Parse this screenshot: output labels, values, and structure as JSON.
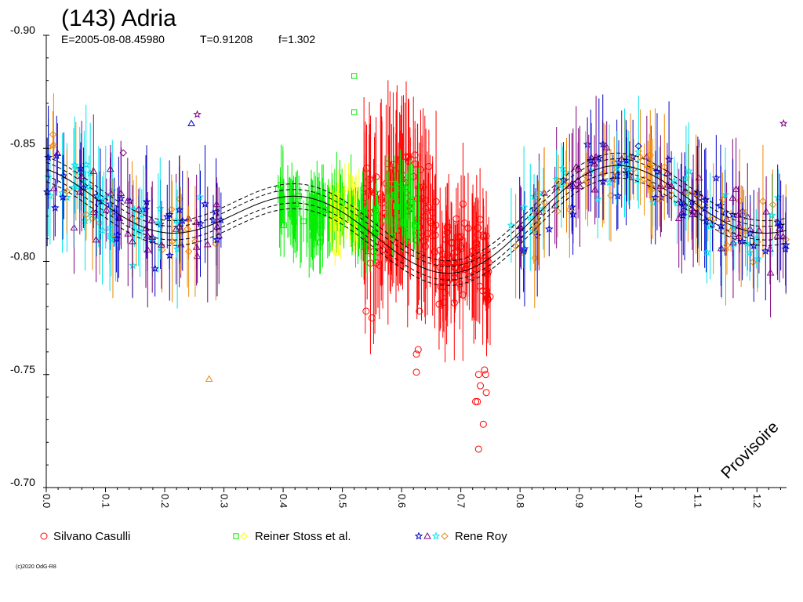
{
  "chart_data": {
    "type": "scatter",
    "title": "(143) Adria",
    "subtitle": {
      "epoch": "E=2005-08-08.45980",
      "period": "T=0.91208",
      "f": "f=1.302"
    },
    "xlim": [
      0.0,
      1.25
    ],
    "ylim": [
      -0.7,
      -0.9
    ],
    "y_inverted": true,
    "x_ticks": [
      "0.0",
      "0.1",
      "0.2",
      "0.3",
      "0.4",
      "0.5",
      "0.6",
      "0.7",
      "0.8",
      "0.9",
      "1.0",
      "1.1",
      "1.2"
    ],
    "x_tick_values": [
      0.0,
      0.1,
      0.2,
      0.3,
      0.4,
      0.5,
      0.6,
      0.7,
      0.8,
      0.9,
      1.0,
      1.1,
      1.2
    ],
    "y_ticks": [
      "-0.90",
      "-0.85",
      "-0.80",
      "-0.75",
      "-0.70"
    ],
    "y_tick_values": [
      -0.9,
      -0.85,
      -0.8,
      -0.75,
      -0.7
    ],
    "grid": false,
    "watermark": "Provisoire",
    "copyright": "(c)2020 OdG-R8",
    "fit_curve": {
      "mean": -0.8195,
      "harmonics": [
        {
          "a": -0.0095,
          "b": -0.006
        },
        {
          "a": -0.0118,
          "b": 0.01
        }
      ],
      "envelope_offsets": [
        0.003,
        0.0055
      ]
    },
    "series": [
      {
        "name": "Silvano Casulli",
        "marker": "circle",
        "colors": [
          "#ff0000"
        ],
        "segments": [
          {
            "x": [
              0.535,
              0.66
            ],
            "center": -0.822,
            "spread": 0.035,
            "err": 0.03
          },
          {
            "x": [
              0.66,
              0.75
            ],
            "center": -0.802,
            "spread": 0.03,
            "err": 0.022
          }
        ],
        "outliers": [
          {
            "x": 0.54,
            "y": -0.778
          },
          {
            "x": 0.55,
            "y": -0.775
          },
          {
            "x": 0.625,
            "y": -0.759
          },
          {
            "x": 0.625,
            "y": -0.751
          },
          {
            "x": 0.628,
            "y": -0.761
          },
          {
            "x": 0.63,
            "y": -0.778
          },
          {
            "x": 0.725,
            "y": -0.738
          },
          {
            "x": 0.728,
            "y": -0.738
          },
          {
            "x": 0.73,
            "y": -0.75
          },
          {
            "x": 0.733,
            "y": -0.745
          },
          {
            "x": 0.738,
            "y": -0.728
          },
          {
            "x": 0.74,
            "y": -0.752
          },
          {
            "x": 0.743,
            "y": -0.742
          },
          {
            "x": 0.742,
            "y": -0.75
          },
          {
            "x": 0.73,
            "y": -0.717
          }
        ]
      },
      {
        "name": "Reiner Stoss et al.",
        "marker": "square",
        "colors": [
          "#00ee00",
          "#ffff00"
        ],
        "segments": [
          {
            "x": [
              0.39,
              0.63
            ],
            "center": -0.822,
            "spread": 0.016,
            "err": 0.012
          },
          {
            "x": [
              0.48,
              0.53
            ],
            "center": -0.818,
            "spread": 0.01,
            "err": 0.01
          }
        ],
        "outliers": [
          {
            "x": 0.52,
            "y": -0.882
          },
          {
            "x": 0.52,
            "y": -0.866
          },
          {
            "x": 0.49,
            "y": -0.804
          }
        ]
      },
      {
        "name": "Rene Roy",
        "marker": "star",
        "colors": [
          "#0000cc",
          "#800080",
          "#00e5ee",
          "#ee8800"
        ],
        "segments": [
          {
            "x": [
              0.0,
              0.3
            ],
            "center": null,
            "spread": 0.025,
            "err": 0.018
          },
          {
            "x": [
              0.78,
              1.25
            ],
            "center": null,
            "spread": 0.022,
            "err": 0.018
          }
        ],
        "outliers": [
          {
            "x": 0.01,
            "y": -0.851
          },
          {
            "x": 0.13,
            "y": -0.848
          },
          {
            "x": 0.245,
            "y": -0.861
          },
          {
            "x": 0.255,
            "y": -0.865
          },
          {
            "x": 0.275,
            "y": -0.748
          },
          {
            "x": 1.0,
            "y": -0.851
          },
          {
            "x": 1.245,
            "y": -0.861
          }
        ]
      }
    ]
  }
}
